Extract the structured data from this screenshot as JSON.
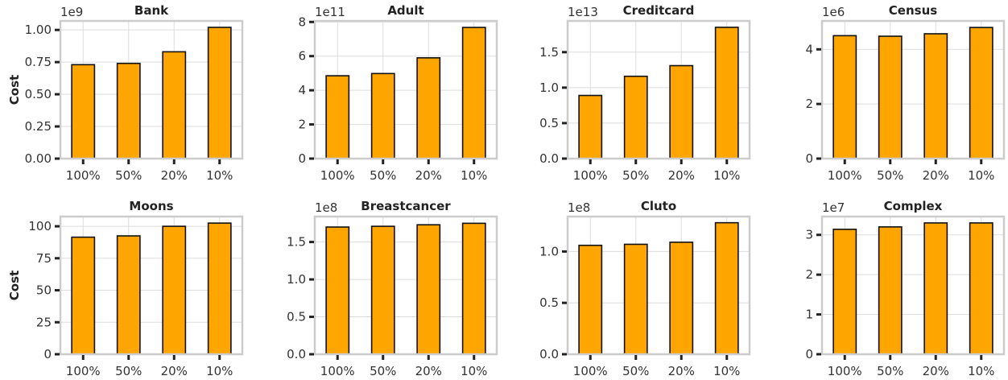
{
  "figure": {
    "bar_color": "#FFA500",
    "edge_color": "#111111",
    "grid_color": "#dddddd",
    "frame_color": "#cccccc",
    "grid": true
  },
  "chart_data": [
    {
      "type": "bar",
      "title": "Bank",
      "ylabel": "Cost",
      "offset_text": "1e9",
      "categories": [
        "100%",
        "50%",
        "20%",
        "10%"
      ],
      "values": [
        0.73,
        0.74,
        0.83,
        1.02
      ],
      "ylim": [
        0,
        1.07
      ],
      "yticks": [
        0,
        0.25,
        0.5,
        0.75,
        1.0
      ],
      "ytick_labels": [
        "0.00",
        "0.25",
        "0.50",
        "0.75",
        "1.00"
      ]
    },
    {
      "type": "bar",
      "title": "Adult",
      "ylabel": "",
      "offset_text": "1e11",
      "categories": [
        "100%",
        "50%",
        "20%",
        "10%"
      ],
      "values": [
        4.85,
        4.98,
        5.9,
        7.68
      ],
      "ylim": [
        0,
        8.06
      ],
      "yticks": [
        0,
        2,
        4,
        6,
        8
      ],
      "ytick_labels": [
        "0",
        "2",
        "4",
        "6",
        "8"
      ]
    },
    {
      "type": "bar",
      "title": "Creditcard",
      "ylabel": "",
      "offset_text": "1e13",
      "categories": [
        "100%",
        "50%",
        "20%",
        "10%"
      ],
      "values": [
        0.89,
        1.16,
        1.31,
        1.85
      ],
      "ylim": [
        0,
        1.94
      ],
      "yticks": [
        0,
        0.5,
        1.0,
        1.5
      ],
      "ytick_labels": [
        "0.0",
        "0.5",
        "1.0",
        "1.5"
      ]
    },
    {
      "type": "bar",
      "title": "Census",
      "ylabel": "",
      "offset_text": "1e6",
      "categories": [
        "100%",
        "50%",
        "20%",
        "10%"
      ],
      "values": [
        4.5,
        4.48,
        4.57,
        4.8
      ],
      "ylim": [
        0,
        5.04
      ],
      "yticks": [
        0,
        2,
        4
      ],
      "ytick_labels": [
        "0",
        "2",
        "4"
      ]
    },
    {
      "type": "bar",
      "title": "Moons",
      "ylabel": "Cost",
      "offset_text": "",
      "categories": [
        "100%",
        "50%",
        "20%",
        "10%"
      ],
      "values": [
        91.5,
        92.5,
        100,
        102.5
      ],
      "ylim": [
        0,
        107.6
      ],
      "yticks": [
        0,
        25,
        50,
        75,
        100
      ],
      "ytick_labels": [
        "0",
        "25",
        "50",
        "75",
        "100"
      ]
    },
    {
      "type": "bar",
      "title": "Breastcancer",
      "ylabel": "",
      "offset_text": "1e8",
      "categories": [
        "100%",
        "50%",
        "20%",
        "10%"
      ],
      "values": [
        1.7,
        1.71,
        1.73,
        1.75
      ],
      "ylim": [
        0,
        1.84
      ],
      "yticks": [
        0,
        0.5,
        1.0,
        1.5
      ],
      "ytick_labels": [
        "0.0",
        "0.5",
        "1.0",
        "1.5"
      ]
    },
    {
      "type": "bar",
      "title": "Cluto",
      "ylabel": "",
      "offset_text": "1e8",
      "categories": [
        "100%",
        "50%",
        "20%",
        "10%"
      ],
      "values": [
        1.06,
        1.07,
        1.09,
        1.28
      ],
      "ylim": [
        0,
        1.34
      ],
      "yticks": [
        0,
        0.5,
        1.0
      ],
      "ytick_labels": [
        "0.0",
        "0.5",
        "1.0"
      ]
    },
    {
      "type": "bar",
      "title": "Complex",
      "ylabel": "",
      "offset_text": "1e7",
      "categories": [
        "100%",
        "50%",
        "20%",
        "10%"
      ],
      "values": [
        3.14,
        3.2,
        3.3,
        3.3
      ],
      "ylim": [
        0,
        3.46
      ],
      "yticks": [
        0,
        1,
        2,
        3
      ],
      "ytick_labels": [
        "0",
        "1",
        "2",
        "3"
      ]
    }
  ]
}
